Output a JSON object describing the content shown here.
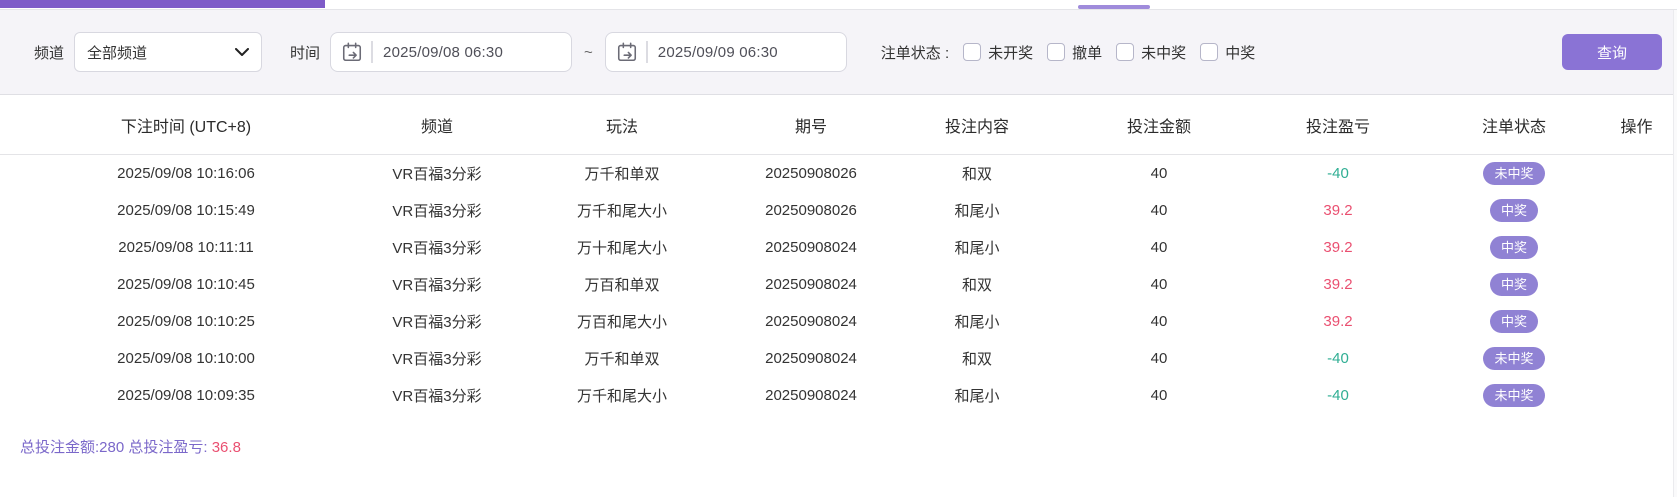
{
  "topbar": {
    "accent_color": "#7e5bc8",
    "tab_indicator_color": "#9f8bdb"
  },
  "filters": {
    "channel_label": "频道",
    "channel_value": "全部频道",
    "time_label": "时间",
    "date_from": "2025/09/08 06:30",
    "date_to": "2025/09/09 06:30",
    "range_separator": "~",
    "status_label": "注单状态 :",
    "status_options": [
      "未开奖",
      "撤单",
      "未中奖",
      "中奖"
    ],
    "search_button_label": "查询"
  },
  "table": {
    "columns": [
      "下注时间 (UTC+8)",
      "频道",
      "玩法",
      "期号",
      "投注内容",
      "投注金额",
      "投注盈亏",
      "注单状态",
      "操作"
    ],
    "rows": [
      {
        "time": "2025/09/08 10:16:06",
        "channel": "VR百福3分彩",
        "play": "万千和单双",
        "issue": "20250908026",
        "content": "和双",
        "amount": "40",
        "profit": "-40",
        "profit_type": "loss",
        "status": "未中奖"
      },
      {
        "time": "2025/09/08 10:15:49",
        "channel": "VR百福3分彩",
        "play": "万千和尾大小",
        "issue": "20250908026",
        "content": "和尾小",
        "amount": "40",
        "profit": "39.2",
        "profit_type": "win",
        "status": "中奖"
      },
      {
        "time": "2025/09/08 10:11:11",
        "channel": "VR百福3分彩",
        "play": "万十和尾大小",
        "issue": "20250908024",
        "content": "和尾小",
        "amount": "40",
        "profit": "39.2",
        "profit_type": "win",
        "status": "中奖"
      },
      {
        "time": "2025/09/08 10:10:45",
        "channel": "VR百福3分彩",
        "play": "万百和单双",
        "issue": "20250908024",
        "content": "和双",
        "amount": "40",
        "profit": "39.2",
        "profit_type": "win",
        "status": "中奖"
      },
      {
        "time": "2025/09/08 10:10:25",
        "channel": "VR百福3分彩",
        "play": "万百和尾大小",
        "issue": "20250908024",
        "content": "和尾小",
        "amount": "40",
        "profit": "39.2",
        "profit_type": "win",
        "status": "中奖"
      },
      {
        "time": "2025/09/08 10:10:00",
        "channel": "VR百福3分彩",
        "play": "万千和单双",
        "issue": "20250908024",
        "content": "和双",
        "amount": "40",
        "profit": "-40",
        "profit_type": "loss",
        "status": "未中奖"
      },
      {
        "time": "2025/09/08 10:09:35",
        "channel": "VR百福3分彩",
        "play": "万千和尾大小",
        "issue": "20250908024",
        "content": "和尾小",
        "amount": "40",
        "profit": "-40",
        "profit_type": "loss",
        "status": "未中奖"
      }
    ]
  },
  "summary": {
    "total_amount_label": "总投注金额:",
    "total_amount_value": "280",
    "total_profit_label": "总投注盈亏:",
    "total_profit_value": "36.8"
  },
  "colors": {
    "accent_purple": "#7e5bc8",
    "button_purple": "#8a73d5",
    "badge_purple": "#9082d4",
    "loss_green": "#2fae93",
    "win_red": "#ea5071",
    "summary_purple": "#7b68ca",
    "filter_bg": "#f5f4f8"
  }
}
